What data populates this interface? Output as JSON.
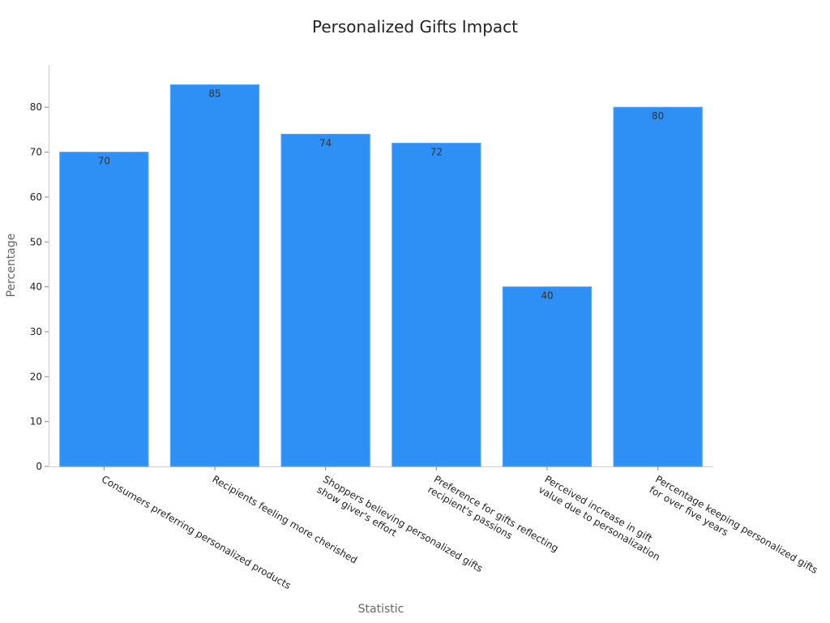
{
  "chart_data": {
    "type": "bar",
    "title": "Personalized Gifts Impact",
    "xlabel": "Statistic",
    "ylabel": "Percentage",
    "categories": [
      [
        "Consumers preferring personalized products"
      ],
      [
        "Recipients feeling more cherished"
      ],
      [
        "Shoppers believing personalized gifts",
        "show giver's effort"
      ],
      [
        "Preference for gifts reflecting",
        "recipient's passions"
      ],
      [
        "Perceived increase in gift",
        "value due to personalization"
      ],
      [
        "Percentage keeping personalized gifts",
        "for over five years"
      ]
    ],
    "values": [
      70,
      85,
      74,
      72,
      40,
      80
    ],
    "yticks": [
      0,
      10,
      20,
      30,
      40,
      50,
      60,
      70,
      80
    ],
    "ylim": [
      0,
      89
    ],
    "grid": false,
    "legend": "none",
    "colors": {
      "bar": "#2e90f5",
      "bar_edge": "#5aa8f7",
      "axis": "#cccccc"
    }
  }
}
